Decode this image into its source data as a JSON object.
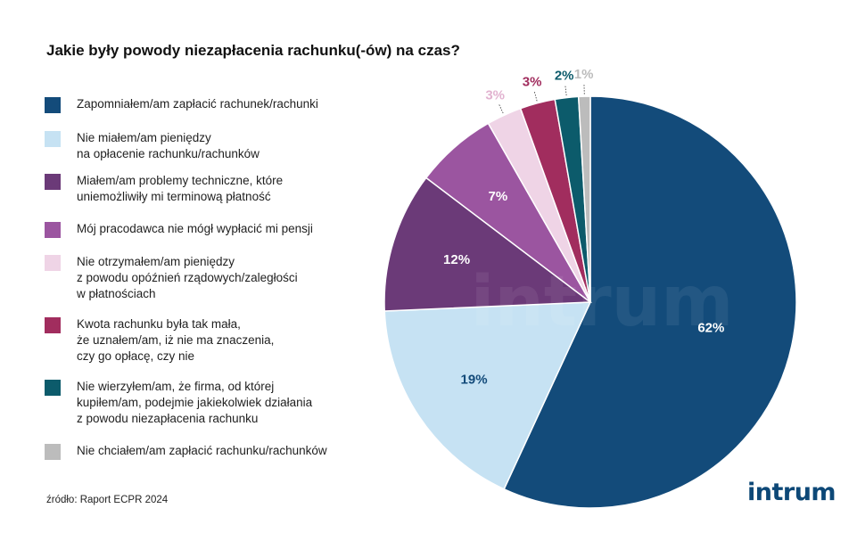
{
  "title": "Jakie były powody niezapłacenia rachunku(-ów) na czas?",
  "source": "źródło: Raport ECPR 2024",
  "logo": "intrum",
  "watermark": "intrum",
  "chart_data": {
    "type": "pie",
    "title": "Jakie były powody niezapłacenia rachunku(-ów) na czas?",
    "legend_position": "left",
    "slices": [
      {
        "label": "Zapomniałem/am zapłacić rachunek/rachunki",
        "value": 62,
        "value_label": "62%",
        "color": "#134b7a"
      },
      {
        "label": "Nie miałem/am pieniędzy\nna opłacenie rachunku/rachunków",
        "value": 19,
        "value_label": "19%",
        "color": "#c6e2f3"
      },
      {
        "label": "Miałem/am problemy techniczne, które\nuniemożliwiły mi terminową płatność",
        "value": 12,
        "value_label": "12%",
        "color": "#6b3a78"
      },
      {
        "label": "Mój pracodawca nie mógł wypłacić mi pensji",
        "value": 7,
        "value_label": "7%",
        "color": "#9b55a0"
      },
      {
        "label": "Nie otrzymałem/am pieniędzy\nz powodu opóźnień rządowych/zaległości\nw płatnościach",
        "value": 3,
        "value_label": "3%",
        "color": "#efd4e6"
      },
      {
        "label": "Kwota rachunku była tak mała,\nże uznałem/am, iż nie ma znaczenia,\nczy go opłacę, czy nie",
        "value": 3,
        "value_label": "3%",
        "color": "#a12d5e"
      },
      {
        "label": "Nie wierzyłem/am, że firma, od której\nkupiłem/am, podejmie jakiekolwiek działania\nz powodu niezapłacenia rachunku",
        "value": 2,
        "value_label": "2%",
        "color": "#0c5b6b"
      },
      {
        "label": "Nie chciałem/am zapłacić rachunku/rachunków",
        "value": 1,
        "value_label": "1%",
        "color": "#bcbcbc"
      }
    ]
  }
}
